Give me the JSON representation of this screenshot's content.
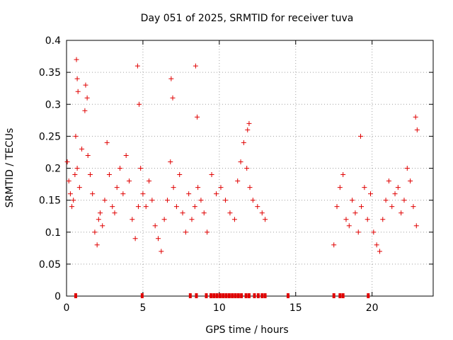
{
  "chart_data": {
    "type": "scatter",
    "title": "Day 051 of 2025, SRMTID for receiver tuva",
    "xlabel": "GPS time / hours",
    "ylabel": "SRMTID / TECUs",
    "xlim": [
      0,
      24
    ],
    "ylim": [
      0,
      0.4
    ],
    "xticks": [
      0,
      5,
      10,
      15,
      20
    ],
    "xtick_labels": [
      "0",
      "5",
      "10",
      "15",
      "20"
    ],
    "yticks": [
      0,
      0.05,
      0.1,
      0.15,
      0.2,
      0.25,
      0.3,
      0.35,
      0.4
    ],
    "ytick_labels": [
      "0",
      "0.05",
      "0.1",
      "0.15",
      "0.2",
      "0.25",
      "0.3",
      "0.35",
      "0.4"
    ],
    "grid": true,
    "marker": "plus",
    "colors": {
      "series": "#e00000",
      "grid": "#a0a0a0",
      "axis": "#000000"
    },
    "series": [
      {
        "name": "SRMTID",
        "x": [
          0.05,
          0.15,
          0.25,
          0.35,
          0.45,
          0.55,
          0.6,
          0.7,
          0.85,
          1.0,
          1.2,
          1.4,
          1.55,
          1.7,
          1.85,
          2.0,
          2.1,
          2.2,
          2.35,
          2.5,
          2.65,
          2.8,
          3.0,
          3.15,
          3.3,
          3.5,
          3.7,
          3.9,
          4.1,
          4.3,
          4.5,
          4.7,
          4.85,
          5.0,
          5.2,
          5.4,
          5.6,
          5.8,
          6.0,
          6.2,
          6.4,
          6.6,
          6.8,
          7.0,
          7.2,
          7.4,
          7.6,
          7.8,
          8.0,
          8.2,
          8.4,
          8.6,
          8.8,
          9.0,
          9.2,
          9.5,
          9.8,
          10.1,
          10.4,
          10.7,
          11.0,
          11.2,
          11.4,
          11.6,
          11.8,
          12.0,
          12.2,
          12.5,
          12.8,
          13.0,
          17.5,
          17.7,
          17.9,
          18.1,
          18.3,
          18.5,
          18.7,
          18.9,
          19.1,
          19.3,
          19.5,
          19.7,
          19.9,
          20.1,
          20.3,
          20.5,
          20.7,
          20.9,
          21.1,
          21.3,
          21.5,
          21.7,
          21.9,
          22.1,
          22.3,
          22.5,
          22.7,
          22.9,
          0.65,
          0.7,
          0.75,
          1.25,
          1.35,
          4.65,
          4.75,
          6.85,
          6.95,
          8.45,
          8.55,
          11.85,
          11.95,
          19.25,
          22.85,
          22.95
        ],
        "y": [
          0.21,
          0.18,
          0.16,
          0.14,
          0.15,
          0.19,
          0.25,
          0.2,
          0.17,
          0.23,
          0.29,
          0.22,
          0.19,
          0.16,
          0.1,
          0.08,
          0.12,
          0.13,
          0.11,
          0.15,
          0.24,
          0.19,
          0.14,
          0.13,
          0.17,
          0.2,
          0.16,
          0.22,
          0.18,
          0.12,
          0.09,
          0.14,
          0.2,
          0.16,
          0.14,
          0.18,
          0.15,
          0.11,
          0.09,
          0.07,
          0.12,
          0.15,
          0.21,
          0.17,
          0.14,
          0.19,
          0.13,
          0.1,
          0.16,
          0.12,
          0.14,
          0.17,
          0.15,
          0.13,
          0.1,
          0.19,
          0.16,
          0.17,
          0.15,
          0.13,
          0.12,
          0.18,
          0.21,
          0.24,
          0.2,
          0.17,
          0.15,
          0.14,
          0.13,
          0.12,
          0.08,
          0.14,
          0.17,
          0.19,
          0.12,
          0.11,
          0.15,
          0.13,
          0.1,
          0.14,
          0.17,
          0.12,
          0.16,
          0.1,
          0.08,
          0.07,
          0.12,
          0.15,
          0.18,
          0.14,
          0.16,
          0.17,
          0.13,
          0.15,
          0.2,
          0.18,
          0.14,
          0.11,
          0.37,
          0.34,
          0.32,
          0.33,
          0.31,
          0.36,
          0.3,
          0.34,
          0.31,
          0.36,
          0.28,
          0.26,
          0.27,
          0.25,
          0.28,
          0.26
        ],
        "gap_marks_x": [
          0.6,
          4.95,
          8.1,
          8.5,
          9.15,
          9.45,
          9.65,
          9.85,
          10.05,
          10.25,
          10.45,
          10.65,
          10.85,
          11.05,
          11.25,
          11.45,
          11.75,
          11.95,
          12.3,
          12.55,
          12.8,
          13.0,
          14.5,
          17.5,
          17.9,
          18.1,
          19.75
        ]
      }
    ]
  }
}
